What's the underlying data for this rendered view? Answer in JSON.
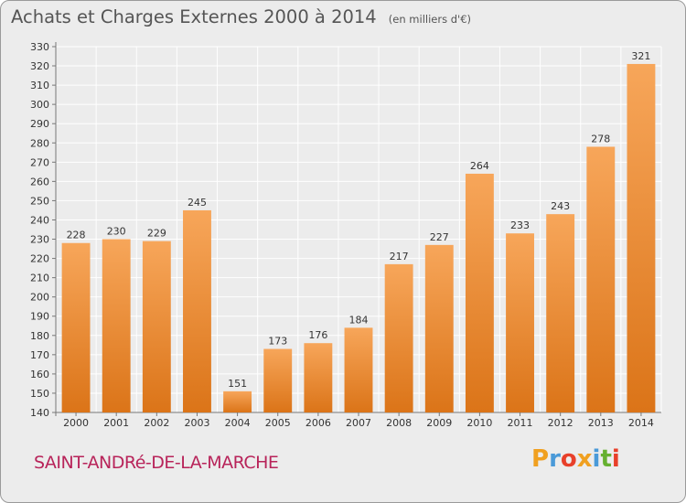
{
  "header": {
    "title": "Achats et Charges Externes 2000 à 2014",
    "subtitle": "(en milliers d'€)"
  },
  "footer": {
    "town": "SAINT-ANDRé-DE-LA-MARCHE",
    "logo_text": "Proxiti",
    "logo_letters": [
      "P",
      "r",
      "o",
      "x",
      "i",
      "t",
      "i"
    ]
  },
  "colors": {
    "bar_top": "#f7a65a",
    "bar_bottom": "#db7418",
    "grid": "#ffffff",
    "background": "#ececec",
    "text": "#333333",
    "town": "#b8245a"
  },
  "chart_data": {
    "type": "bar",
    "categories": [
      "2000",
      "2001",
      "2002",
      "2003",
      "2004",
      "2005",
      "2006",
      "2007",
      "2008",
      "2009",
      "2010",
      "2011",
      "2012",
      "2013",
      "2014"
    ],
    "values": [
      228,
      230,
      229,
      245,
      151,
      173,
      176,
      184,
      217,
      227,
      264,
      233,
      243,
      278,
      321
    ],
    "ylim": [
      140,
      330
    ],
    "yticks": [
      140,
      150,
      160,
      170,
      180,
      190,
      200,
      210,
      220,
      230,
      240,
      250,
      260,
      270,
      280,
      290,
      300,
      310,
      320,
      330
    ],
    "grid": true,
    "data_labels": true
  }
}
